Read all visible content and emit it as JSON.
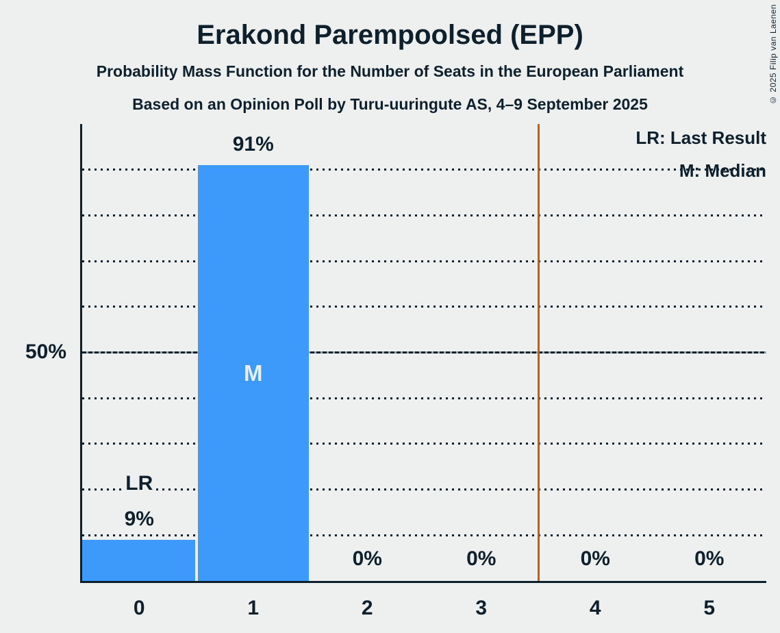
{
  "page": {
    "background": "#EEEFEF",
    "text_color": "#0F202D",
    "copyright": "© 2025 Filip van Laenen"
  },
  "header": {
    "title": "Erakond Parempoolsed (EPP)",
    "subtitle1": "Probability Mass Function for the Number of Seats in the European Parliament",
    "subtitle2": "Based on an Opinion Poll by Turu-uuringute AS, 4–9 September 2025"
  },
  "legend": {
    "last_result": "LR: Last Result",
    "median": "M: Median"
  },
  "chart_data": {
    "type": "bar",
    "title": "Erakond Parempoolsed (EPP)",
    "categories": [
      "0",
      "1",
      "2",
      "3",
      "4",
      "5"
    ],
    "values": [
      9,
      91,
      0,
      0,
      0,
      0
    ],
    "value_labels": [
      "9%",
      "91%",
      "0%",
      "0%",
      "0%",
      "0%"
    ],
    "ylim": [
      0,
      100
    ],
    "y_tick_values": [
      50
    ],
    "y_tick_labels": [
      "50%"
    ],
    "gridlines_percent": [
      10,
      20,
      30,
      40,
      50,
      60,
      70,
      80,
      90
    ],
    "major_gridline_percent": 50,
    "grid": true,
    "legend_position": "top-right",
    "bar_color": "#3D9AFA",
    "annotations": {
      "last_result": {
        "label": "LR",
        "bar_index": 0
      },
      "median": {
        "label": "M",
        "bar_index": 1
      },
      "threshold_line": {
        "x": 3.5,
        "color": "#CE5C00"
      }
    }
  }
}
